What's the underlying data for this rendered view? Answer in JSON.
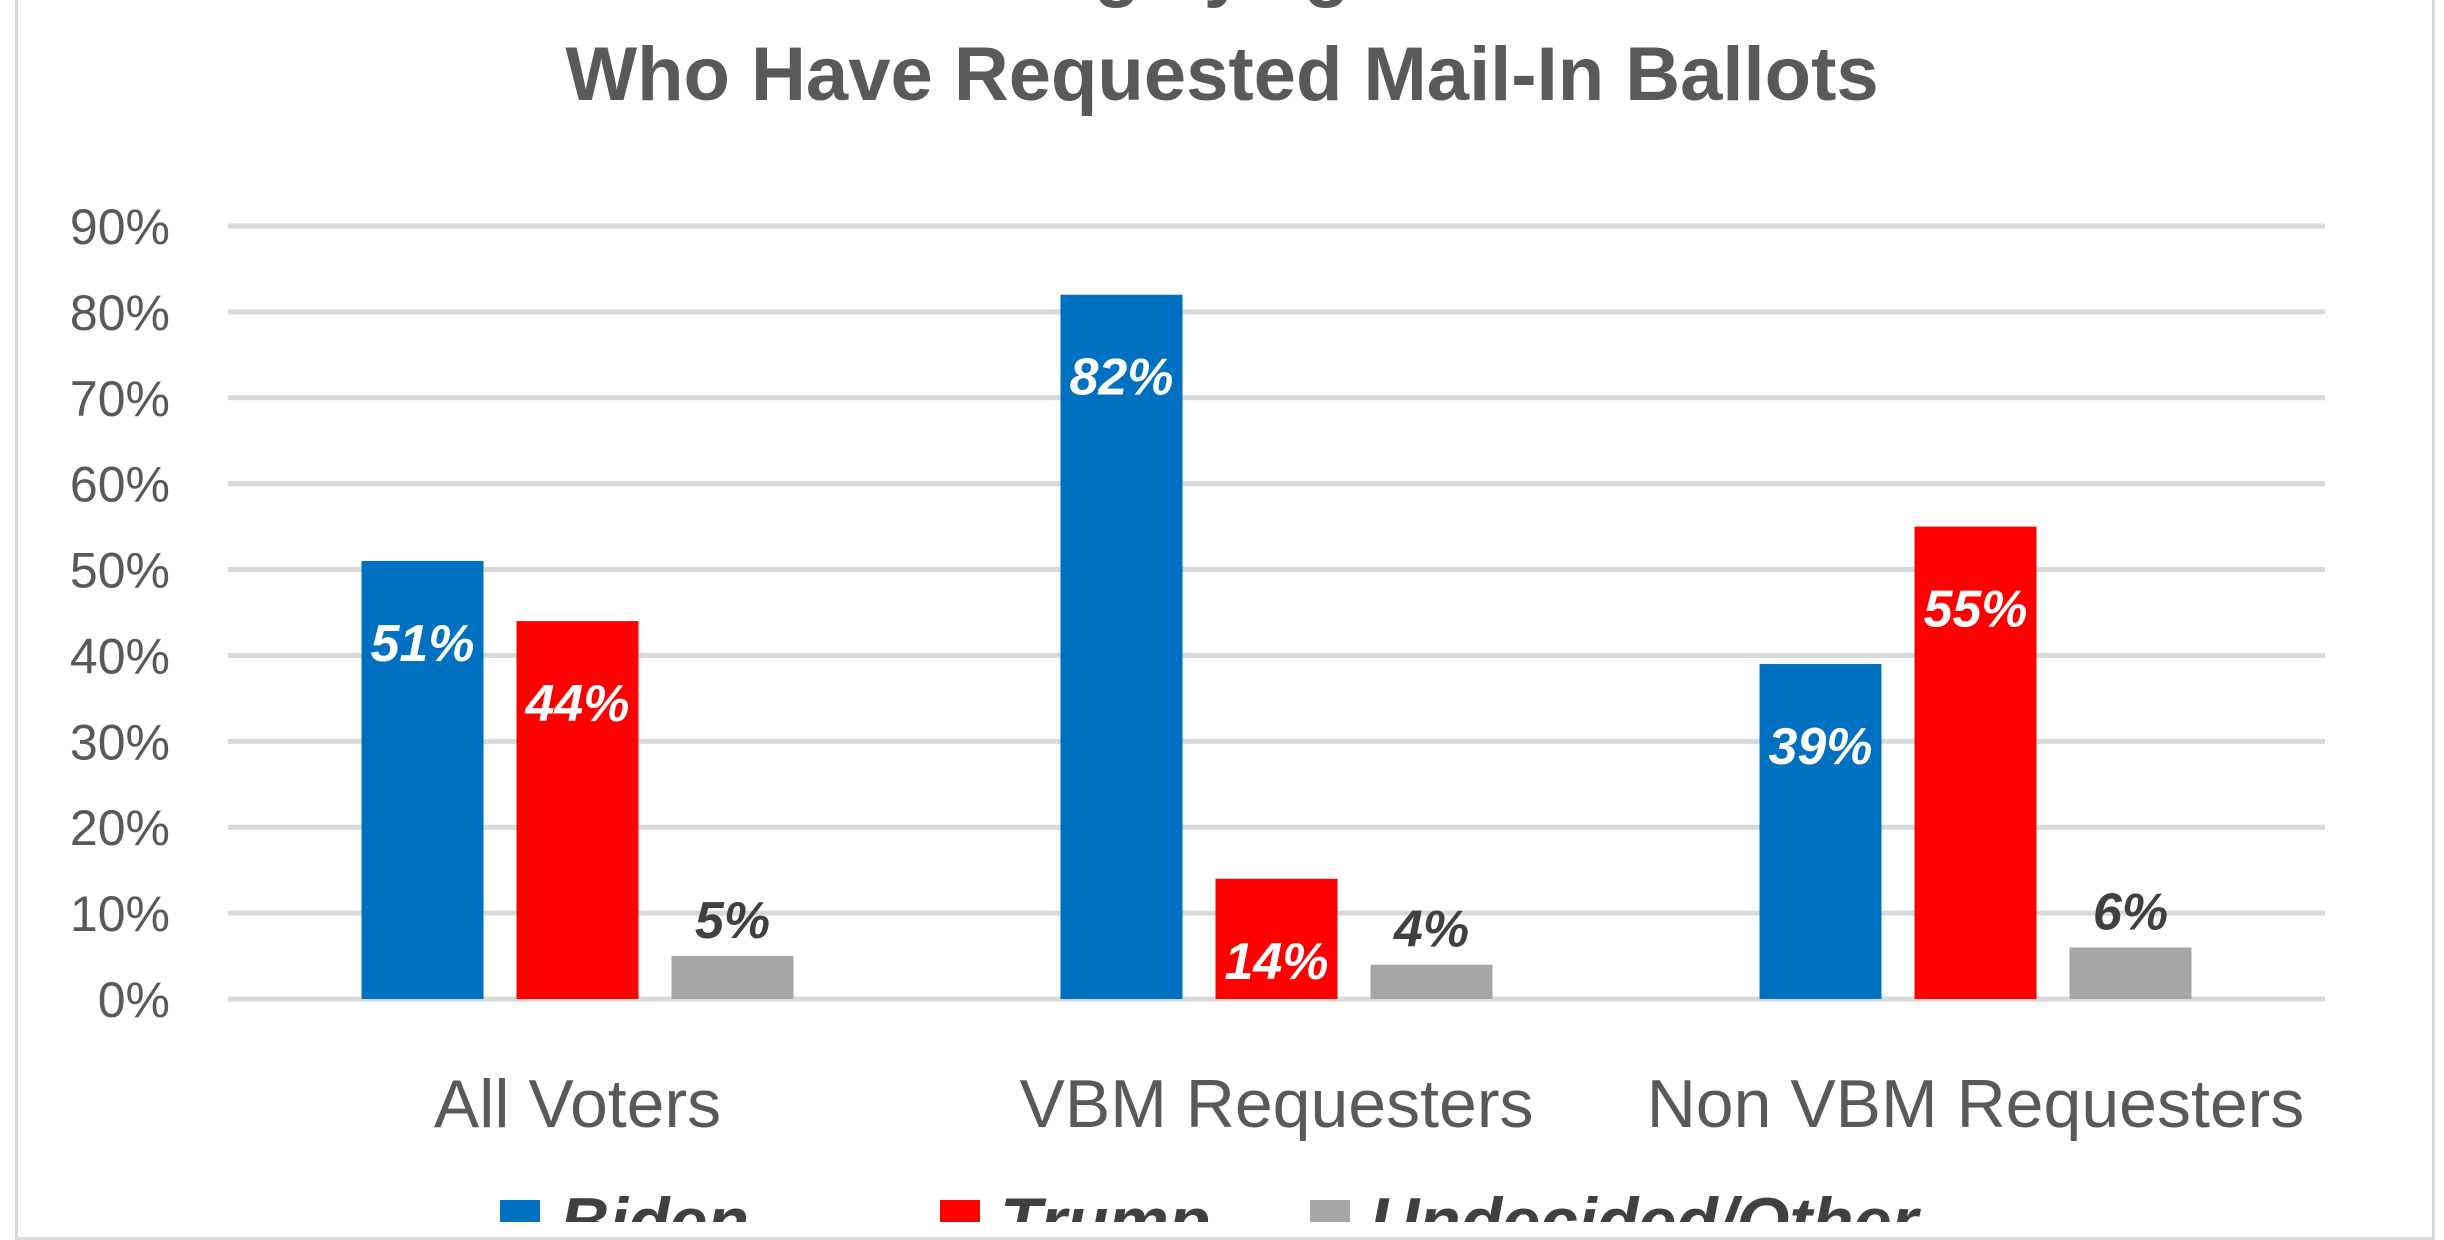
{
  "chart_data": {
    "type": "bar",
    "title": [
      "...g...y...g...",
      "Who Have Requested Mail-In Ballots"
    ],
    "categories": [
      "All Voters",
      "VBM Requesters",
      "Non VBM Requesters"
    ],
    "series": [
      {
        "name": "Biden",
        "color": "#0070C0",
        "values": [
          51,
          82,
          39
        ],
        "labels": [
          "51%",
          "82%",
          "39%"
        ]
      },
      {
        "name": "Trump",
        "color": "#FF0000",
        "values": [
          44,
          14,
          55
        ],
        "labels": [
          "44%",
          "14%",
          "55%"
        ]
      },
      {
        "name": "Undecided/Other",
        "color": "#A6A6A6",
        "values": [
          5,
          4,
          6
        ],
        "labels": [
          "5%",
          "4%",
          "6%"
        ]
      }
    ],
    "ylim": [
      0,
      90
    ],
    "yticks": [
      "0%",
      "10%",
      "20%",
      "30%",
      "40%",
      "50%",
      "60%",
      "70%",
      "80%",
      "90%"
    ],
    "grid": true,
    "legend_position": "bottom"
  }
}
